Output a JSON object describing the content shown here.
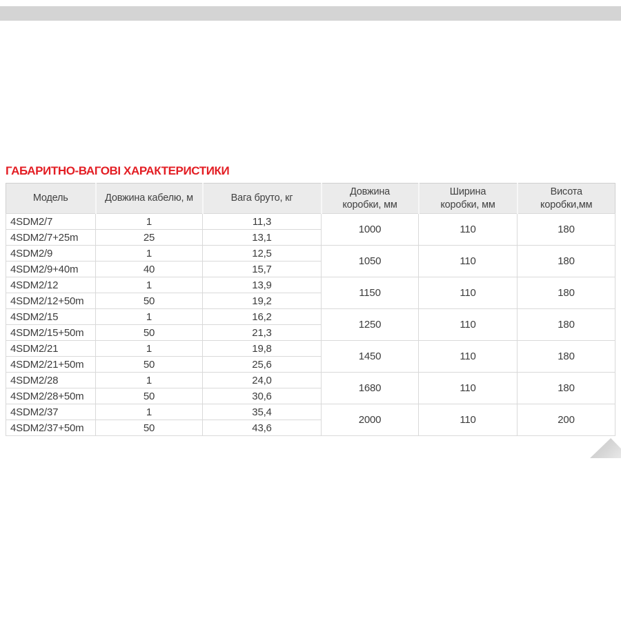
{
  "section": {
    "title": "ГАБАРИТНО-ВАГОВІ ХАРАКТЕРИСТИКИ"
  },
  "table": {
    "columns": [
      {
        "label": "Модель"
      },
      {
        "label": "Довжина кабелю, м"
      },
      {
        "label": "Вага бруто, кг"
      },
      {
        "label": "Довжина коробки, мм"
      },
      {
        "label": "Ширина коробки, мм"
      },
      {
        "label": "Висота коробки,мм"
      }
    ],
    "rows": [
      {
        "model": "4SDM2/7",
        "cable_length_m": "1",
        "gross_weight_kg": "11,3"
      },
      {
        "model": "4SDM2/7+25m",
        "cable_length_m": "25",
        "gross_weight_kg": "13,1"
      },
      {
        "model": "4SDM2/9",
        "cable_length_m": "1",
        "gross_weight_kg": "12,5"
      },
      {
        "model": "4SDM2/9+40m",
        "cable_length_m": "40",
        "gross_weight_kg": "15,7"
      },
      {
        "model": "4SDM2/12",
        "cable_length_m": "1",
        "gross_weight_kg": "13,9"
      },
      {
        "model": "4SDM2/12+50m",
        "cable_length_m": "50",
        "gross_weight_kg": "19,2"
      },
      {
        "model": "4SDM2/15",
        "cable_length_m": "1",
        "gross_weight_kg": "16,2"
      },
      {
        "model": "4SDM2/15+50m",
        "cable_length_m": "50",
        "gross_weight_kg": "21,3"
      },
      {
        "model": "4SDM2/21",
        "cable_length_m": "1",
        "gross_weight_kg": "19,8"
      },
      {
        "model": "4SDM2/21+50m",
        "cable_length_m": "50",
        "gross_weight_kg": "25,6"
      },
      {
        "model": "4SDM2/28",
        "cable_length_m": "1",
        "gross_weight_kg": "24,0"
      },
      {
        "model": "4SDM2/28+50m",
        "cable_length_m": "50",
        "gross_weight_kg": "30,6"
      },
      {
        "model": "4SDM2/37",
        "cable_length_m": "1",
        "gross_weight_kg": "35,4"
      },
      {
        "model": "4SDM2/37+50m",
        "cable_length_m": "50",
        "gross_weight_kg": "43,6"
      }
    ],
    "box_groups": [
      {
        "box_length_mm": "1000",
        "box_width_mm": "110",
        "box_height_mm": "180"
      },
      {
        "box_length_mm": "1050",
        "box_width_mm": "110",
        "box_height_mm": "180"
      },
      {
        "box_length_mm": "1150",
        "box_width_mm": "110",
        "box_height_mm": "180"
      },
      {
        "box_length_mm": "1250",
        "box_width_mm": "110",
        "box_height_mm": "180"
      },
      {
        "box_length_mm": "1450",
        "box_width_mm": "110",
        "box_height_mm": "180"
      },
      {
        "box_length_mm": "1680",
        "box_width_mm": "110",
        "box_height_mm": "180"
      },
      {
        "box_length_mm": "2000",
        "box_width_mm": "110",
        "box_height_mm": "200"
      }
    ]
  },
  "colors": {
    "accent_red": "#e31e24",
    "header_bg": "#ebebeb",
    "cell_border": "#d9d9d9",
    "top_bar": "#d4d4d4",
    "corner_fold": "#d0d0d0",
    "text": "#3c3c3c"
  }
}
